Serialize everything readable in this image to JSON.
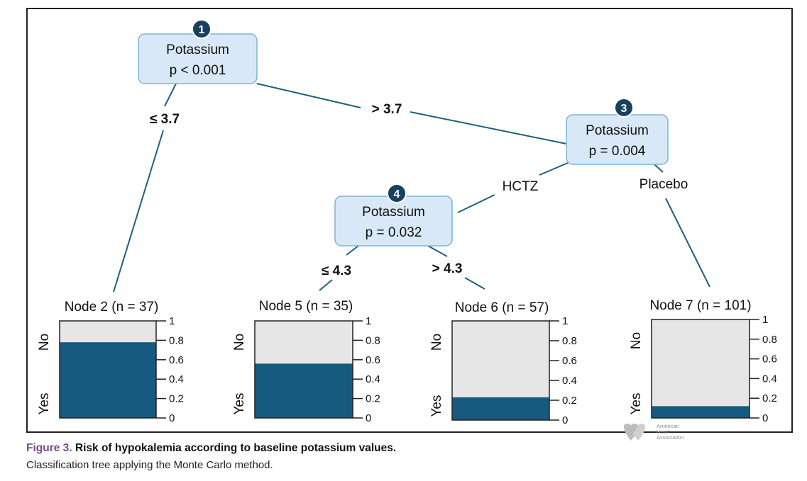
{
  "chart_data": {
    "type": "tree",
    "colors": {
      "border": "#222222",
      "node_fill": "#d9e8f6",
      "node_stroke": "#7fb3d5",
      "badge": "#17415e",
      "yes": "#175a80",
      "no": "#e6e6e6",
      "edge": "#1f5f7f"
    },
    "inner_nodes": [
      {
        "id": "1",
        "variable": "Potassium",
        "p": "p < 0.001"
      },
      {
        "id": "3",
        "variable": "Potassium",
        "p": "p = 0.004"
      },
      {
        "id": "4",
        "variable": "Potassium",
        "p": "p = 0.032"
      }
    ],
    "edge_labels": [
      {
        "from": "1",
        "to": "2",
        "label": "≤ 3.7"
      },
      {
        "from": "1",
        "to": "3",
        "label": "> 3.7"
      },
      {
        "from": "3",
        "to": "4",
        "label": "HCTZ"
      },
      {
        "from": "3",
        "to": "7",
        "label": "Placebo"
      },
      {
        "from": "4",
        "to": "5",
        "label": "≤ 4.3"
      },
      {
        "from": "4",
        "to": "6",
        "label": "> 4.3"
      }
    ],
    "terminal_nodes": [
      {
        "id": "2",
        "label": "Node 2 (n = 37)",
        "yes_proportion": 0.78
      },
      {
        "id": "5",
        "label": "Node 5 (n = 35)",
        "yes_proportion": 0.56
      },
      {
        "id": "6",
        "label": "Node 6 (n = 57)",
        "yes_proportion": 0.23
      },
      {
        "id": "7",
        "label": "Node 7 (n = 101)",
        "yes_proportion": 0.12
      }
    ],
    "y_axis_ticks": [
      "1",
      "0.8",
      "0.6",
      "0.4",
      "0.2",
      "0"
    ],
    "y_range": [
      0,
      1
    ],
    "categories": [
      "No",
      "Yes"
    ]
  },
  "caption": {
    "figure_label": "Figure 3.",
    "title": "Risk of hypokalemia according to baseline potassium values.",
    "subtitle": "Classification tree applying the Monte Carlo method."
  },
  "logo": {
    "line1": "American",
    "line2": "Heart",
    "line3": "Association."
  }
}
